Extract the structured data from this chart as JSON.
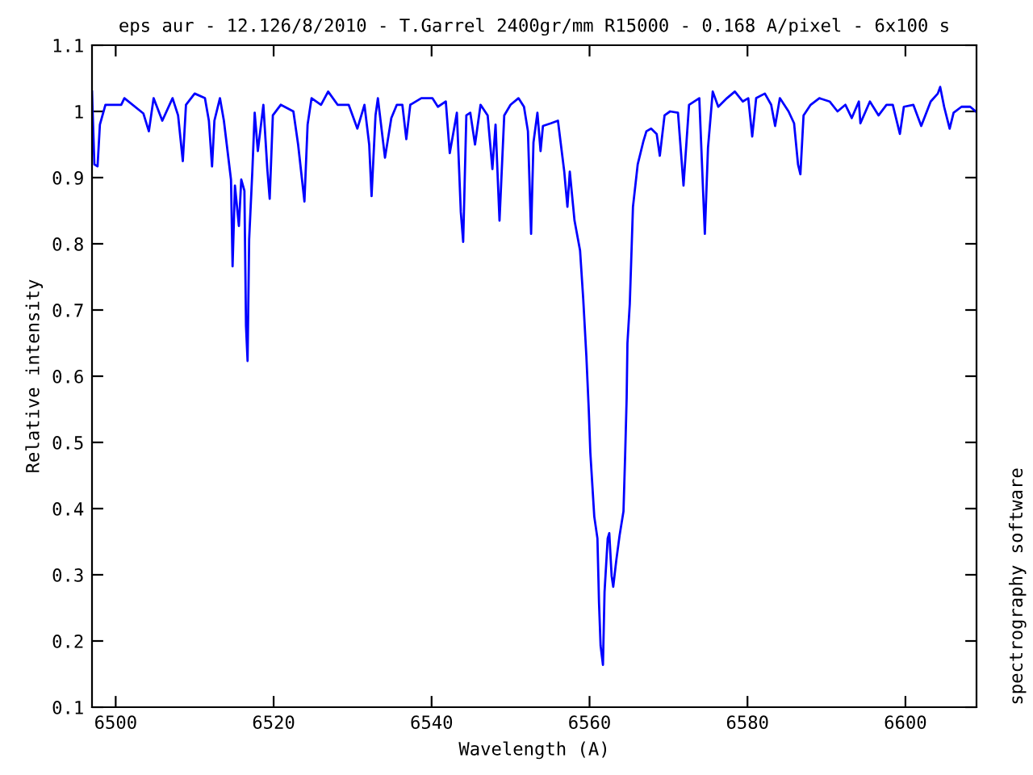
{
  "chart_data": {
    "type": "line",
    "title": "eps aur - 12.126/8/2010 - T.Garrel 2400gr/mm R15000 - 0.168 A/pixel - 6x100 s",
    "xlabel": "Wavelength (A)",
    "ylabel": "Relative intensity",
    "annotations": [
      "spectrography software"
    ],
    "x": [
      6497.0,
      6497.3,
      6497.7,
      6498.0,
      6498.7,
      6500.7,
      6501.1,
      6503.5,
      6504.2,
      6504.8,
      6505.9,
      6507.2,
      6507.9,
      6508.5,
      6508.9,
      6510.0,
      6511.3,
      6511.8,
      6512.2,
      6512.5,
      6513.2,
      6513.7,
      6514.6,
      6514.8,
      6515.1,
      6515.6,
      6515.9,
      6516.3,
      6516.5,
      6516.7,
      6516.9,
      6517.3,
      6517.6,
      6518.0,
      6518.7,
      6519.2,
      6519.5,
      6519.9,
      6520.9,
      6522.5,
      6523.1,
      6523.9,
      6524.3,
      6524.8,
      6526.0,
      6526.9,
      6528.1,
      6529.5,
      6530.6,
      6531.5,
      6532.1,
      6532.4,
      6532.9,
      6533.2,
      6534.1,
      6534.9,
      6535.6,
      6536.3,
      6536.8,
      6537.3,
      6538.7,
      6540.1,
      6540.8,
      6541.8,
      6542.3,
      6543.2,
      6543.7,
      6544.0,
      6544.4,
      6544.9,
      6545.5,
      6546.2,
      6547.1,
      6547.7,
      6548.1,
      6548.6,
      6549.2,
      6550.0,
      6551.0,
      6551.7,
      6552.2,
      6552.6,
      6552.9,
      6553.4,
      6553.8,
      6554.1,
      6555.1,
      6556.0,
      6556.8,
      6557.2,
      6557.5,
      6558.1,
      6558.8,
      6559.2,
      6559.6,
      6559.9,
      6560.1,
      6560.6,
      6561.0,
      6561.2,
      6561.4,
      6561.7,
      6561.9,
      6562.3,
      6562.5,
      6562.8,
      6563.0,
      6563.4,
      6563.8,
      6564.3,
      6564.5,
      6564.7,
      6564.8,
      6565.1,
      6565.5,
      6566.1,
      6566.8,
      6567.2,
      6567.8,
      6568.5,
      6568.9,
      6569.5,
      6570.2,
      6571.2,
      6571.9,
      6572.6,
      6573.9,
      6574.6,
      6575.0,
      6575.6,
      6576.3,
      6577.4,
      6578.4,
      6579.4,
      6580.1,
      6580.6,
      6581.1,
      6582.2,
      6583.0,
      6583.5,
      6584.1,
      6585.2,
      6585.9,
      6586.4,
      6586.7,
      6587.1,
      6588.0,
      6589.1,
      6590.4,
      6591.4,
      6592.4,
      6593.2,
      6594.1,
      6594.3,
      6595.5,
      6596.6,
      6597.6,
      6598.4,
      6599.3,
      6599.8,
      6601.0,
      6602.0,
      6603.2,
      6604.1,
      6604.4,
      6604.9,
      6605.6,
      6606.1,
      6607.1,
      6608.2,
      6608.9
    ],
    "series": [
      {
        "color": "#0000ff",
        "values": [
          1.03,
          0.92,
          0.917,
          0.98,
          1.01,
          1.01,
          1.02,
          0.997,
          0.97,
          1.02,
          0.986,
          1.02,
          0.994,
          0.925,
          1.01,
          1.027,
          1.02,
          0.986,
          0.917,
          0.986,
          1.02,
          0.986,
          0.897,
          0.766,
          0.888,
          0.827,
          0.897,
          0.88,
          0.676,
          0.623,
          0.807,
          0.909,
          0.998,
          0.94,
          1.01,
          0.913,
          0.868,
          0.994,
          1.01,
          1.0,
          0.95,
          0.864,
          0.98,
          1.02,
          1.01,
          1.03,
          1.01,
          1.01,
          0.974,
          1.01,
          0.95,
          0.872,
          0.994,
          1.02,
          0.93,
          0.99,
          1.01,
          1.01,
          0.958,
          1.01,
          1.02,
          1.02,
          1.007,
          1.015,
          0.937,
          0.998,
          0.848,
          0.803,
          0.994,
          0.998,
          0.95,
          1.01,
          0.994,
          0.913,
          0.98,
          0.835,
          0.994,
          1.01,
          1.02,
          1.007,
          0.97,
          0.815,
          0.953,
          0.998,
          0.94,
          0.978,
          0.982,
          0.986,
          0.909,
          0.856,
          0.909,
          0.835,
          0.79,
          0.717,
          0.63,
          0.55,
          0.485,
          0.388,
          0.355,
          0.258,
          0.193,
          0.164,
          0.274,
          0.355,
          0.363,
          0.298,
          0.282,
          0.323,
          0.359,
          0.396,
          0.477,
          0.567,
          0.65,
          0.71,
          0.856,
          0.92,
          0.954,
          0.97,
          0.974,
          0.966,
          0.933,
          0.994,
          1.0,
          0.998,
          0.888,
          1.01,
          1.02,
          0.815,
          0.945,
          1.03,
          1.007,
          1.02,
          1.03,
          1.015,
          1.02,
          0.962,
          1.02,
          1.027,
          1.01,
          0.978,
          1.02,
          1.0,
          0.982,
          0.92,
          0.905,
          0.994,
          1.01,
          1.02,
          1.015,
          1.0,
          1.01,
          0.99,
          1.015,
          0.982,
          1.015,
          0.994,
          1.01,
          1.01,
          0.966,
          1.007,
          1.01,
          0.978,
          1.015,
          1.027,
          1.037,
          1.007,
          0.974,
          0.998,
          1.007,
          1.007,
          1.0
        ]
      }
    ],
    "xlim": [
      6497,
      6609
    ],
    "ylim": [
      0.1,
      1.1
    ],
    "xticks": [
      6500,
      6520,
      6540,
      6560,
      6580,
      6600
    ],
    "yticks": [
      0.1,
      0.2,
      0.3,
      0.4,
      0.5,
      0.6,
      0.7,
      0.8,
      0.9,
      1,
      1.1
    ],
    "grid": false,
    "legend": false,
    "marker": "none",
    "line_style": "solid"
  }
}
